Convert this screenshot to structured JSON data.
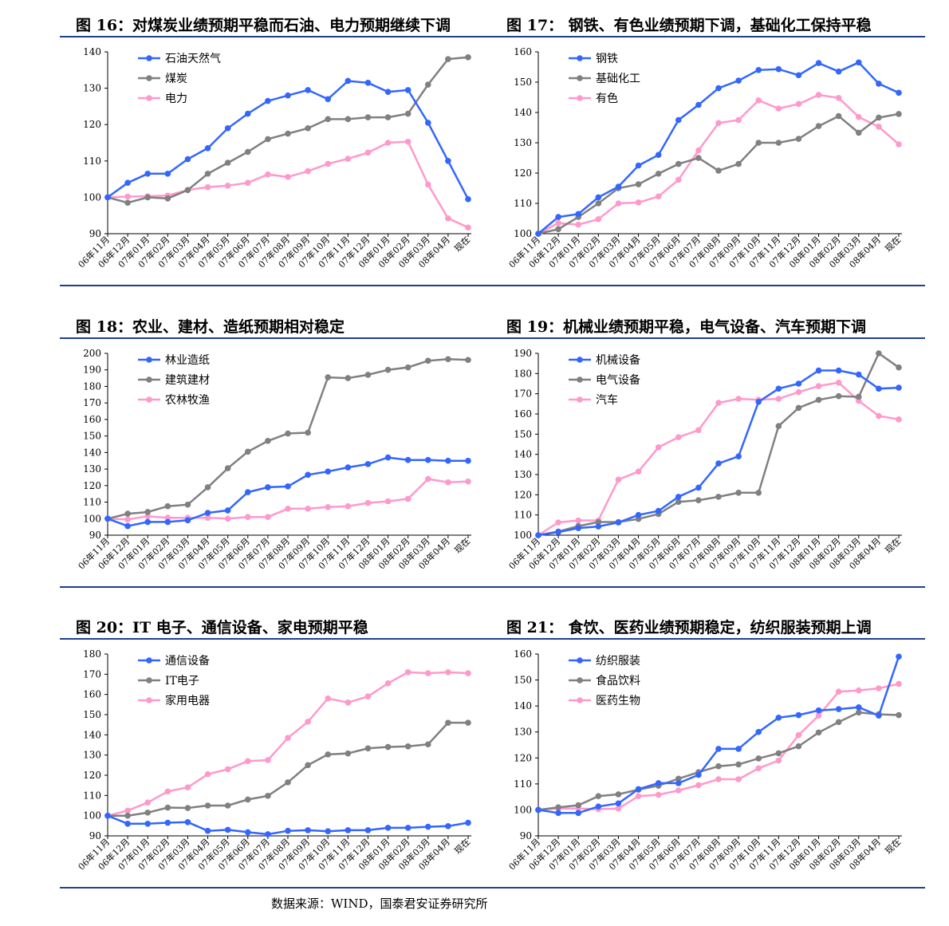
{
  "source": "数据来源：WIND，国泰君安证券研究所",
  "colors": {
    "blue": "#3366ff",
    "gray": "#808080",
    "pink": "#ff99cc",
    "rule": "#1f3f8f"
  },
  "categories": [
    "06年11月",
    "06年12月",
    "07年01月",
    "07年02月",
    "07年03月",
    "07年04月",
    "07年05月",
    "07年06月",
    "07年07月",
    "07年08月",
    "07年09月",
    "07年10月",
    "07年11月",
    "07年12月",
    "08年01月",
    "08年02月",
    "08年03月",
    "08年04月",
    "现在"
  ],
  "chart_data": [
    {
      "type": "line",
      "title": "图 16：对煤炭业绩预期平稳而石油、电力预期继续下调",
      "ylim": [
        90,
        140
      ],
      "ystep": 10,
      "yticks": [
        "90",
        "100",
        "110",
        "120",
        "130",
        "140"
      ],
      "categories": [
        "06年11月",
        "06年12月",
        "07年01月",
        "07年02月",
        "07年03月",
        "07年04月",
        "07年05月",
        "07年06月",
        "07年07月",
        "07年08月",
        "07年09月",
        "07年10月",
        "07年11月",
        "07年12月",
        "08年01月",
        "08年02月",
        "08年03月",
        "08年04月",
        "现在"
      ],
      "series": [
        {
          "name": "石油天然气",
          "color": "#3366ff",
          "values": [
            100,
            104,
            106.5,
            106.5,
            110.5,
            113.5,
            119,
            123,
            126.5,
            128,
            129.5,
            127,
            132,
            131.5,
            129,
            129.5,
            120.5,
            110,
            99.5
          ]
        },
        {
          "name": "煤炭",
          "color": "#808080",
          "values": [
            100,
            98.5,
            100,
            99.7,
            102,
            106.5,
            109.5,
            112.5,
            116,
            117.5,
            119,
            121.5,
            121.5,
            122,
            122,
            123,
            131,
            138,
            138.5
          ]
        },
        {
          "name": "电力",
          "color": "#ff99cc",
          "values": [
            100,
            100.2,
            100.3,
            100.5,
            102,
            102.8,
            103.2,
            104,
            106.3,
            105.6,
            107.2,
            109.2,
            110.6,
            112.3,
            115,
            115.3,
            103.5,
            94.2,
            91.7
          ]
        }
      ]
    },
    {
      "type": "line",
      "title": "图 17：  钢铁、有色业绩预期下调，基础化工保持平稳",
      "ylim": [
        100,
        160
      ],
      "ystep": 10,
      "yticks": [
        "100",
        "110",
        "120",
        "130",
        "140",
        "150",
        "160"
      ],
      "categories": [
        "06年11月",
        "06年12月",
        "07年01月",
        "07年02月",
        "07年03月",
        "07年04月",
        "07年05月",
        "07年06月",
        "07年07月",
        "07年08月",
        "07年09月",
        "07年10月",
        "07年11月",
        "07年12月",
        "08年01月",
        "08年02月",
        "08年03月",
        "08年04月",
        "现在"
      ],
      "series": [
        {
          "name": "钢铁",
          "color": "#3366ff",
          "values": [
            100,
            105.5,
            106.5,
            112,
            115.5,
            122.5,
            126,
            137.5,
            142.5,
            148,
            150.5,
            154,
            154.3,
            152.3,
            156.3,
            153.5,
            156.5,
            149.5,
            146.5
          ]
        },
        {
          "name": "基础化工",
          "color": "#808080",
          "values": [
            100,
            101.5,
            105.5,
            110,
            115,
            116.3,
            119.8,
            123,
            125,
            120.8,
            123,
            130,
            130,
            131.3,
            135.5,
            138.8,
            133.3,
            138.3,
            139.5
          ]
        },
        {
          "name": "有色",
          "color": "#ff99cc",
          "values": [
            100,
            103.5,
            103,
            104.8,
            110,
            110.3,
            112.3,
            117.8,
            127.5,
            136.5,
            137.5,
            144,
            141.3,
            142.8,
            145.8,
            144.8,
            138.5,
            135.3,
            129.5
          ]
        }
      ]
    },
    {
      "type": "line",
      "title": "图 18：农业、建材、造纸预期相对稳定",
      "ylim": [
        90,
        200
      ],
      "ystep": 10,
      "yticks": [
        "90",
        "100",
        "110",
        "120",
        "130",
        "140",
        "150",
        "160",
        "170",
        "180",
        "190",
        "200"
      ],
      "categories": [
        "06年11月",
        "06年12月",
        "07年01月",
        "07年02月",
        "07年03月",
        "07年04月",
        "07年05月",
        "07年06月",
        "07年07月",
        "07年08月",
        "07年09月",
        "07年10月",
        "07年11月",
        "07年12月",
        "08年01月",
        "08年02月",
        "08年03月",
        "08年04月",
        "现在"
      ],
      "series": [
        {
          "name": "林业造纸",
          "color": "#3366ff",
          "values": [
            100,
            95.5,
            98,
            98,
            99,
            103.5,
            105,
            116,
            119,
            119.5,
            126.5,
            128.5,
            131,
            133,
            137,
            135.5,
            135.5,
            135,
            135
          ]
        },
        {
          "name": "建筑建材",
          "color": "#808080",
          "values": [
            100,
            103,
            104,
            107.5,
            108.5,
            119,
            130.5,
            140.5,
            147,
            151.5,
            152,
            185.5,
            185,
            187,
            190,
            191.5,
            195.5,
            196.5,
            196
          ]
        },
        {
          "name": "农林牧渔",
          "color": "#ff99cc",
          "values": [
            100,
            99.5,
            101.5,
            100.5,
            100.5,
            100.5,
            100,
            101,
            101,
            106,
            106,
            107,
            107.5,
            109.5,
            110.5,
            112,
            124,
            122,
            122.5
          ]
        }
      ]
    },
    {
      "type": "line",
      "title": "图 19：机械业绩预期平稳，电气设备、汽车预期下调",
      "ylim": [
        100,
        190
      ],
      "ystep": 10,
      "yticks": [
        "100",
        "110",
        "120",
        "130",
        "140",
        "150",
        "160",
        "170",
        "180",
        "190"
      ],
      "categories": [
        "06年11月",
        "06年12月",
        "07年01月",
        "07年02月",
        "07年03月",
        "07年04月",
        "07年05月",
        "07年06月",
        "07年07月",
        "07年08月",
        "07年09月",
        "07年10月",
        "07年11月",
        "07年12月",
        "08年01月",
        "08年02月",
        "08年03月",
        "08年04月",
        "现在"
      ],
      "series": [
        {
          "name": "机械设备",
          "color": "#3366ff",
          "values": [
            100,
            101.5,
            103.5,
            104.3,
            106.3,
            110,
            112,
            119,
            123.5,
            135.5,
            139,
            166,
            172.5,
            175,
            181.5,
            181.5,
            179.5,
            172.5,
            173
          ]
        },
        {
          "name": "电气设备",
          "color": "#808080",
          "values": [
            100,
            101.8,
            104.5,
            106.5,
            106.5,
            108,
            110.5,
            116.5,
            117.3,
            119,
            121,
            121,
            154,
            163,
            167,
            168.8,
            168.5,
            190,
            183
          ]
        },
        {
          "name": "汽车",
          "color": "#ff99cc",
          "values": [
            100,
            106.3,
            107.3,
            107.3,
            127.5,
            131.5,
            143.5,
            148.5,
            152,
            165.5,
            167.5,
            167,
            167.5,
            170.8,
            173.8,
            175.5,
            166.5,
            159,
            157.3
          ]
        }
      ]
    },
    {
      "type": "line",
      "title": "图 20：IT 电子、通信设备、家电预期平稳",
      "ylim": [
        90,
        180
      ],
      "ystep": 10,
      "yticks": [
        "90",
        "100",
        "110",
        "120",
        "130",
        "140",
        "150",
        "160",
        "170",
        "180"
      ],
      "categories": [
        "06年11月",
        "06年12月",
        "07年01月",
        "07年02月",
        "07年03月",
        "07年04月",
        "07年05月",
        "07年06月",
        "07年07月",
        "07年08月",
        "07年09月",
        "07年10月",
        "07年11月",
        "07年12月",
        "08年01月",
        "08年02月",
        "08年03月",
        "08年04月",
        "现在"
      ],
      "series": [
        {
          "name": "通信设备",
          "color": "#3366ff",
          "values": [
            100,
            96,
            96,
            96.5,
            96.8,
            92.5,
            93,
            91.8,
            90.8,
            92.5,
            92.8,
            92.3,
            92.8,
            92.8,
            94,
            94,
            94.5,
            94.8,
            96.5
          ]
        },
        {
          "name": "IT电子",
          "color": "#808080",
          "values": [
            100,
            100,
            101.5,
            104,
            103.8,
            105,
            105,
            108,
            109.8,
            116.5,
            125,
            130.3,
            130.8,
            133.3,
            134,
            134.3,
            135.3,
            146,
            146
          ]
        },
        {
          "name": "家用电器",
          "color": "#ff99cc",
          "values": [
            100,
            102.5,
            106.5,
            112,
            114,
            120.5,
            123,
            127,
            127.5,
            138.5,
            146.5,
            158,
            156,
            159,
            165.5,
            171,
            170.5,
            171,
            170.5
          ]
        }
      ]
    },
    {
      "type": "line",
      "title": "图 21：  食饮、医药业绩预期稳定，纺织服装预期上调",
      "ylim": [
        90,
        160
      ],
      "ystep": 10,
      "yticks": [
        "90",
        "100",
        "110",
        "120",
        "130",
        "140",
        "150",
        "160"
      ],
      "categories": [
        "06年11月",
        "06年12月",
        "07年01月",
        "07年02月",
        "07年03月",
        "07年04月",
        "07年05月",
        "07年06月",
        "07年07月",
        "07年08月",
        "07年09月",
        "07年10月",
        "07年11月",
        "07年12月",
        "08年01月",
        "08年02月",
        "08年03月",
        "08年04月",
        "现在"
      ],
      "series": [
        {
          "name": "纺织服装",
          "color": "#3366ff",
          "values": [
            100,
            98.8,
            98.8,
            101.3,
            102.5,
            108,
            110.3,
            110.3,
            113.5,
            123.5,
            123.5,
            130,
            135.5,
            136.5,
            138.3,
            138.8,
            139.5,
            136.3,
            159
          ]
        },
        {
          "name": "食品饮料",
          "color": "#808080",
          "values": [
            100,
            101,
            101.8,
            105.3,
            106,
            107.8,
            109.3,
            112,
            114.5,
            116.8,
            117.5,
            119.8,
            121.8,
            124.5,
            129.8,
            133.8,
            137.5,
            136.8,
            136.5
          ]
        },
        {
          "name": "医药生物",
          "color": "#ff99cc",
          "values": [
            100,
            100.5,
            100.5,
            100.3,
            100.5,
            105.3,
            105.8,
            107.5,
            109.5,
            111.8,
            111.8,
            116,
            119,
            128.8,
            136.3,
            145.5,
            146,
            146.8,
            148.5
          ]
        }
      ]
    }
  ]
}
